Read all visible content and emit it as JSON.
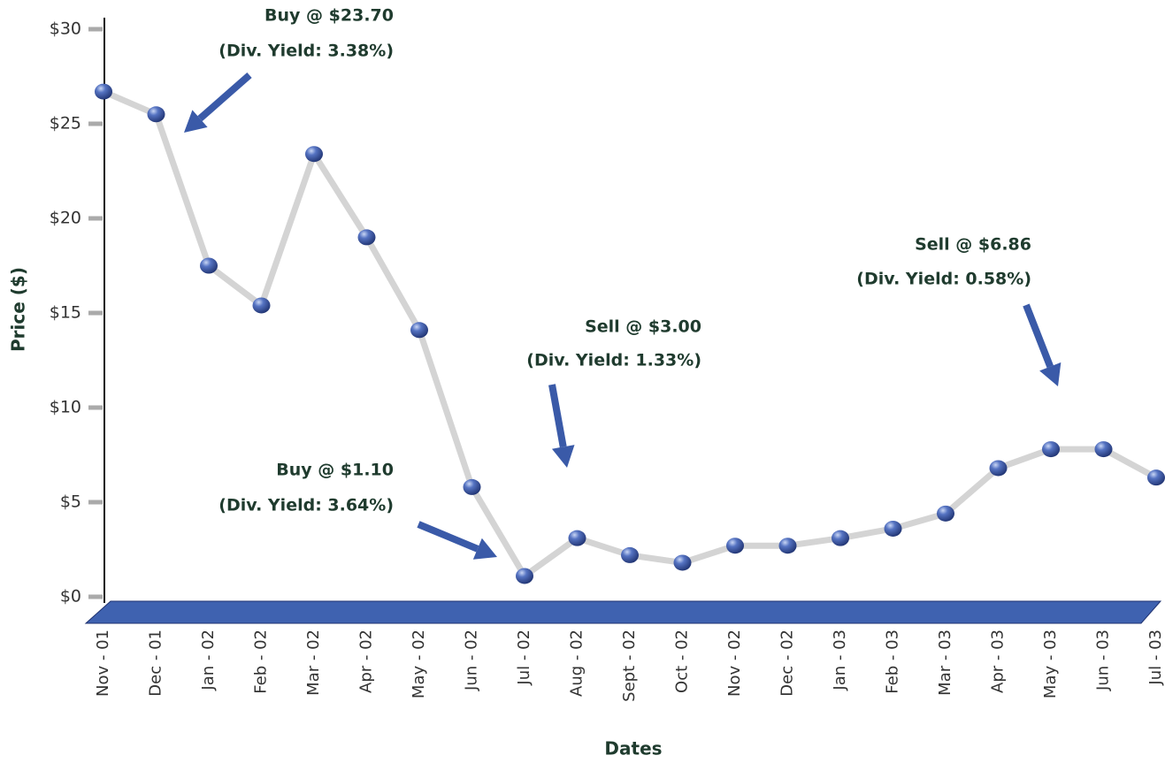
{
  "chart_data": {
    "type": "line",
    "xlabel": "Dates",
    "ylabel": "Price ($)",
    "categories": [
      "Nov - 01",
      "Dec - 01",
      "Jan - 02",
      "Feb - 02",
      "Mar - 02",
      "Apr - 02",
      "May - 02",
      "Jun - 02",
      "Jul - 02",
      "Aug - 02",
      "Sept - 02",
      "Oct - 02",
      "Nov - 02",
      "Dec - 02",
      "Jan - 03",
      "Feb - 03",
      "Mar - 03",
      "Apr - 03",
      "May - 03",
      "Jun - 03",
      "Jul - 03"
    ],
    "values": [
      26.7,
      25.5,
      17.5,
      15.4,
      23.4,
      19.0,
      14.1,
      5.8,
      1.1,
      3.1,
      2.2,
      1.8,
      2.7,
      2.7,
      3.1,
      3.6,
      4.4,
      6.8,
      7.8,
      7.8,
      6.3
    ],
    "color": "#4a67b3",
    "line_color": "#d4d4d4",
    "ylim": [
      0,
      30
    ],
    "yticks": [
      {
        "value": 0,
        "label": "$0"
      },
      {
        "value": 5,
        "label": "$5"
      },
      {
        "value": 10,
        "label": "$10"
      },
      {
        "value": 15,
        "label": "$15"
      },
      {
        "value": 20,
        "label": "$20"
      },
      {
        "value": 25,
        "label": "$25"
      },
      {
        "value": 30,
        "label": "$30"
      }
    ],
    "annotations": [
      [
        "Buy @ $23.70",
        "(Div. Yield: 3.38%)"
      ],
      [
        "Buy @ $1.10",
        "(Div. Yield:  3.64%)"
      ],
      [
        "Sell @ $3.00",
        "(Div. Yield:  1.33%)"
      ],
      [
        "Sell @ $6.86",
        "(Div. Yield:  0.58%)"
      ]
    ]
  }
}
